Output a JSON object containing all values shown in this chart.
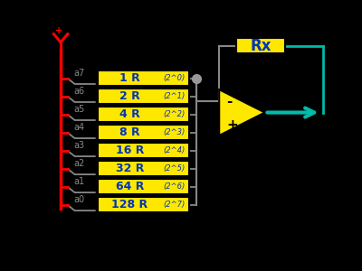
{
  "bg_color": "#000000",
  "yellow": "#FFE800",
  "blue_text": "#0033BB",
  "red": "#FF0000",
  "teal": "#00BBAA",
  "gray": "#888888",
  "dark_gray": "#555555",
  "resistors": [
    "1 R",
    "2 R",
    "4 R",
    "8 R",
    "16 R",
    "32 R",
    "64 R",
    "128 R"
  ],
  "exponents": [
    "(2^0)",
    "(2^1)",
    "(2^2)",
    "(2^3)",
    "(2^4)",
    "(2^5)",
    "(2^6)",
    "(2^7)"
  ],
  "labels": [
    "a7",
    "a6",
    "a5",
    "a4",
    "a3",
    "a2",
    "a1",
    "a0"
  ],
  "rx_label": "Rx",
  "minus_label": "-",
  "plus_label": "+"
}
